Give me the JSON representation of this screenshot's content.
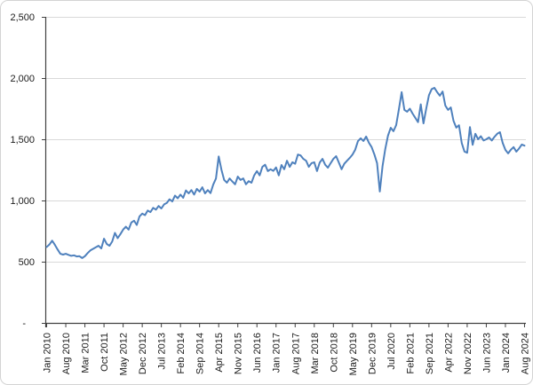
{
  "chart_data": {
    "type": "line",
    "title": "",
    "legend": "none",
    "grid": "horizontal",
    "ylim": [
      0,
      2500
    ],
    "y_tick_step": 500,
    "y_tick_labels": [
      "-",
      "500",
      "1,000",
      "1,500",
      "2,000",
      "2,500"
    ],
    "x_label_every_n_months": 7,
    "x_tick_labels": [
      "Jan 2010",
      "Aug 2010",
      "Mar 2011",
      "Oct 2011",
      "May 2012",
      "Dec 2012",
      "Jul 2013",
      "Feb 2014",
      "Sep 2014",
      "Apr 2015",
      "Nov 2015",
      "Jun 2016",
      "Jan 2017",
      "Aug 2017",
      "Mar 2018",
      "Oct 2018",
      "May 2019",
      "Dec 2019",
      "Jul 2020",
      "Feb 2021",
      "Sep 2021",
      "Apr 2022",
      "Nov 2022",
      "Jun 2023",
      "Jan 2024",
      "Aug 2024"
    ],
    "series": [
      {
        "name": "monthly-series",
        "color": "#4F81BD",
        "start_month": "Jan 2010",
        "end_month": "Aug 2024",
        "frequency": "monthly",
        "values": [
          620,
          640,
          672,
          638,
          600,
          565,
          558,
          565,
          556,
          548,
          552,
          543,
          545,
          530,
          545,
          570,
          592,
          605,
          618,
          630,
          608,
          688,
          645,
          630,
          665,
          735,
          692,
          725,
          762,
          786,
          762,
          820,
          835,
          800,
          870,
          893,
          880,
          918,
          905,
          940,
          925,
          955,
          935,
          968,
          980,
          1010,
          992,
          1040,
          1018,
          1048,
          1022,
          1082,
          1058,
          1085,
          1048,
          1095,
          1072,
          1108,
          1058,
          1085,
          1060,
          1130,
          1180,
          1360,
          1252,
          1168,
          1145,
          1180,
          1155,
          1132,
          1195,
          1168,
          1180,
          1132,
          1158,
          1145,
          1205,
          1240,
          1205,
          1275,
          1292,
          1240,
          1255,
          1242,
          1270,
          1205,
          1290,
          1255,
          1325,
          1275,
          1312,
          1300,
          1375,
          1368,
          1340,
          1325,
          1275,
          1305,
          1312,
          1240,
          1310,
          1340,
          1292,
          1268,
          1305,
          1340,
          1362,
          1310,
          1255,
          1300,
          1325,
          1348,
          1375,
          1415,
          1485,
          1508,
          1486,
          1522,
          1472,
          1436,
          1377,
          1305,
          1073,
          1280,
          1421,
          1530,
          1594,
          1566,
          1616,
          1747,
          1885,
          1740,
          1725,
          1750,
          1710,
          1675,
          1640,
          1785,
          1630,
          1750,
          1860,
          1910,
          1920,
          1885,
          1856,
          1890,
          1775,
          1740,
          1760,
          1650,
          1595,
          1615,
          1470,
          1400,
          1390,
          1600,
          1455,
          1545,
          1500,
          1525,
          1490,
          1500,
          1515,
          1490,
          1520,
          1545,
          1558,
          1470,
          1413,
          1385,
          1415,
          1436,
          1399,
          1425,
          1457,
          1448
        ]
      }
    ],
    "colors": {
      "line": "#4F81BD",
      "gridline": "#D9D9D9",
      "axis": "#404040",
      "label": "#1a1a1a",
      "background": "#FFFFFF",
      "frame_border": "#D3D3D3"
    }
  }
}
